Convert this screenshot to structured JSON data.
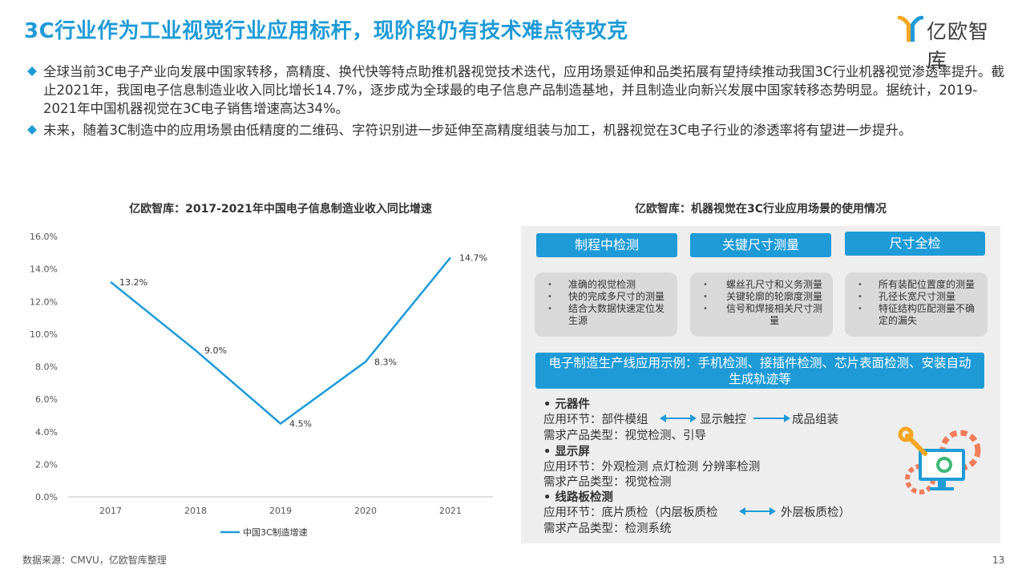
{
  "header": {
    "title": "3C行业作为工业视觉行业应用标杆，现阶段仍有技术难点待攻克",
    "logo_text": "亿欧智库"
  },
  "bullets": [
    "全球当前3C电子产业向发展中国家转移，高精度、换代快等特点助推机器视觉技术迭代，应用场景延伸和品类拓展有望持续推动我国3C行业机器视觉渗透率提升。截止2021年，我国电子信息制造业收入同比增长14.7%，逐步成为全球最的电子信息产品制造基地，并且制造业向新兴发展中国家转移态势明显。据统计，2019-2021年中国机器视觉在3C电子销售增速高达34%。",
    "未来，随着3C制造中的应用场景由低精度的二维码、字符识别进一步延伸至高精度组装与加工，机器视觉在3C电子行业的渗透率将有望进一步提升。"
  ],
  "chart_data": {
    "type": "line",
    "title": "亿欧智库：2017-2021年中国电子信息制造业收入同比增速",
    "categories": [
      "2017",
      "2018",
      "2019",
      "2020",
      "2021"
    ],
    "series": [
      {
        "name": "中国3C制造增速",
        "values": [
          13.2,
          9.0,
          4.5,
          8.3,
          14.7
        ],
        "labels": [
          "13.2%",
          "9.0%",
          "4.5%",
          "8.3%",
          "14.7%"
        ],
        "color": "#1e9bd7"
      }
    ],
    "y_ticks": [
      "0.0%",
      "2.0%",
      "4.0%",
      "6.0%",
      "8.0%",
      "10.0%",
      "12.0%",
      "14.0%",
      "16.0%"
    ],
    "ylim": [
      0,
      16
    ],
    "legend_position": "bottom",
    "grid": false
  },
  "right_panel": {
    "title": "亿欧智库：机器视觉在3C行业应用场景的使用情况",
    "tags": [
      "制程中检测",
      "关键尺寸测量",
      "尺寸全检"
    ],
    "cards": [
      [
        "准确的视觉检测",
        "快的完成多尺寸的测量",
        "结合大数据快速定位发生源"
      ],
      [
        "螺丝孔尺寸和义务测量",
        "关键轮廓的轮廓度测量",
        "信号和焊接相关尺寸测量"
      ],
      [
        "所有装配位置度的测量",
        "孔径长宽尺寸测量",
        "特征结构匹配测量不确定的漏失"
      ]
    ],
    "bullet_symbol": "•",
    "banner": "电子制造生产线应用示例：手机检测、接插件检测、芯片表面检测、安装自动生成轨迹等",
    "details": {
      "c_head": "•  元器件",
      "c_flow_1": "应用环节：部件模组",
      "c_flow_2": "显示触控",
      "c_flow_3": "成品组装",
      "c_type": "需求产品类型：视觉检测、引导",
      "d_head": "•  显示屏",
      "d_flow": "应用环节：外观检测 点灯检测 分辨率检测",
      "d_type": "需求产品类型：视觉检测",
      "p_head": "•  线路板检测",
      "p_flow_1": "应用环节：底片质检（内层板质检",
      "p_flow_2": "外层板质检）",
      "p_type": "需求产品类型：检测系统"
    }
  },
  "footer": {
    "source": "数据来源：CMVU，亿欧智库整理",
    "page_number": "13"
  },
  "colors": {
    "accent": "#1e9bd7",
    "logo_gold": "#f5a623",
    "logo_blue": "#1e9bd7",
    "card_bg": "#d9d9d9",
    "panel_bg": "#eeeeee",
    "gear": "#f07c5b"
  },
  "icons": [
    "diamond-bullet-icon",
    "logo-mark-icon",
    "arrow-double-icon",
    "arrow-right-icon",
    "monitor-gear-icon"
  ]
}
